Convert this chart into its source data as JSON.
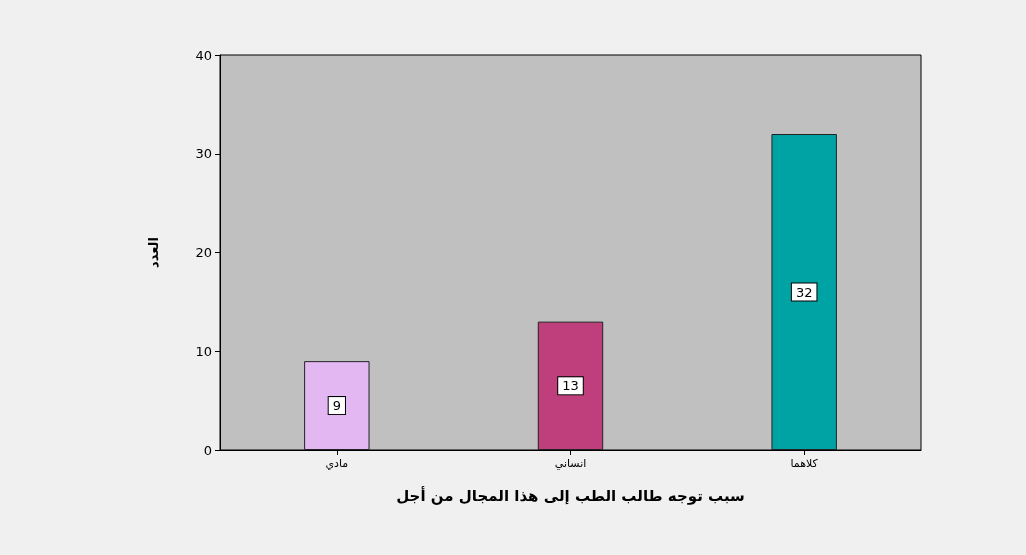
{
  "chart_data": {
    "type": "bar",
    "xlabel": "سبب توجه طالب الطب إلى هذا المجال من أجل",
    "ylabel": "العدد",
    "categories": [
      "مادي",
      "انساني",
      "كلاهما"
    ],
    "values": [
      9,
      13,
      32
    ],
    "colors": [
      "#e3b8f2",
      "#bf3f7d",
      "#00a3a3"
    ],
    "ylim": [
      0,
      40
    ],
    "yticks": [
      0,
      10,
      20,
      30,
      40
    ],
    "grid": false,
    "data_labels": true
  }
}
